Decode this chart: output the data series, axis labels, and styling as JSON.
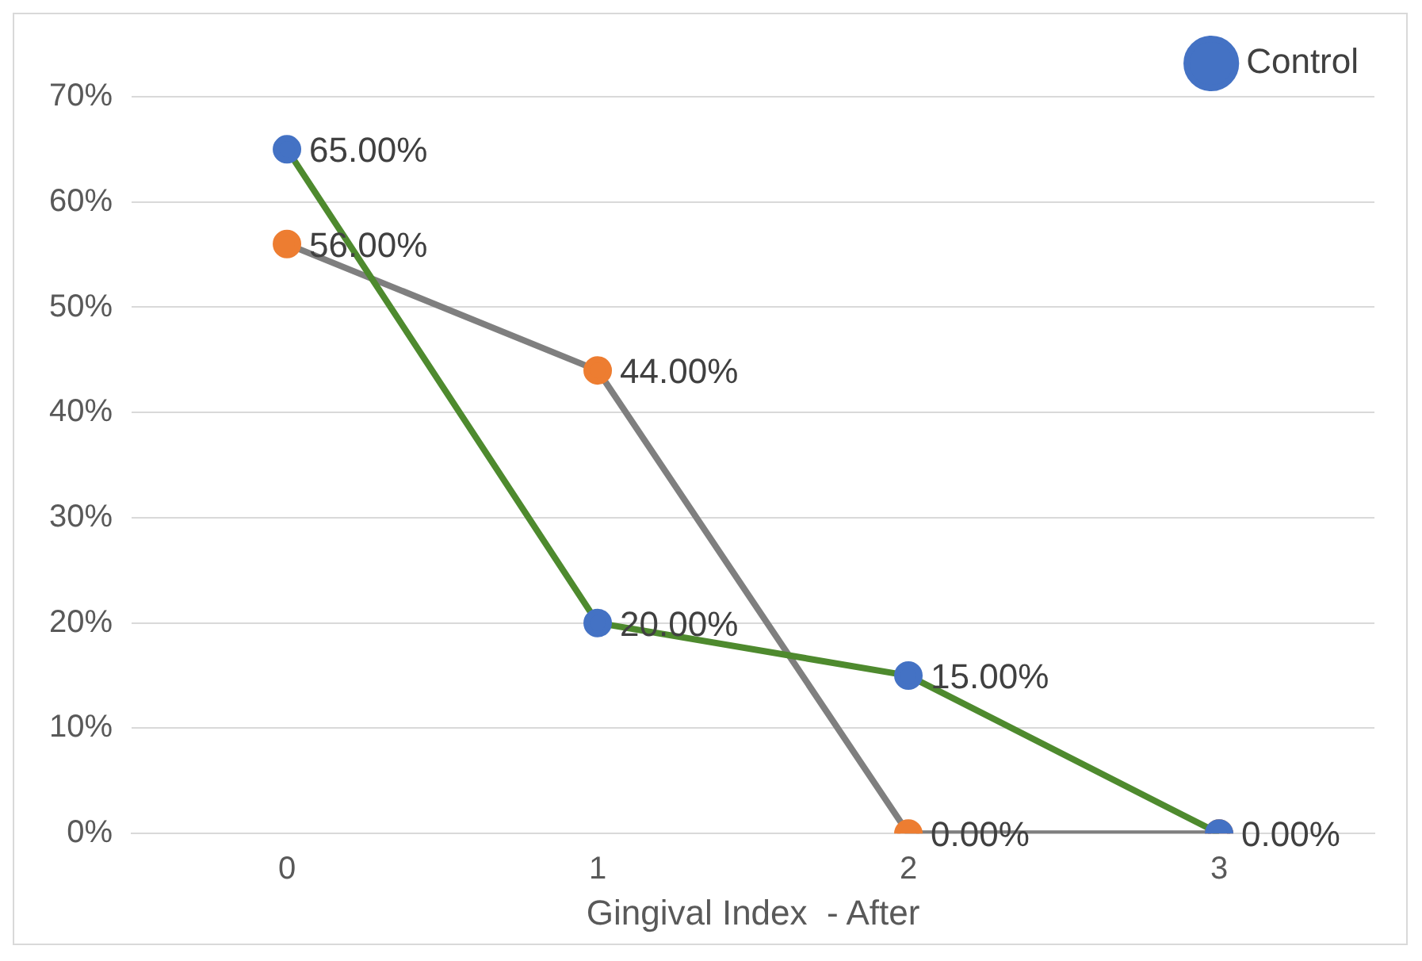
{
  "chart_data": {
    "type": "line",
    "xlabel": "Gingival Index  - After",
    "categories": [
      "0",
      "1",
      "2",
      "3"
    ],
    "series": [
      {
        "name": "Control",
        "color": "#4e8a2e",
        "colors": [
          "#4472c4",
          "#4472c4",
          "#4472c4",
          "#4472c4"
        ],
        "values": [
          65,
          20,
          15,
          0
        ],
        "value_labels": [
          "65.00%",
          "20.00%",
          "15.00%",
          null
        ]
      },
      {
        "color": "#7f7f7f",
        "colors": [
          "#ed7d31",
          "#ed7d31",
          "#ed7d31",
          "#ed7d31"
        ],
        "values": [
          56,
          44,
          0,
          0
        ],
        "value_labels": [
          "56.00%",
          "44.00%",
          "0.00%",
          "0.00%"
        ]
      }
    ],
    "ylim": [
      0,
      70
    ],
    "yticks": [
      {
        "value": 0,
        "label": "0%"
      },
      {
        "value": 10,
        "label": "10%"
      },
      {
        "value": 20,
        "label": "20%"
      },
      {
        "value": 30,
        "label": "30%"
      },
      {
        "value": 40,
        "label": "40%"
      },
      {
        "value": 50,
        "label": "50%"
      },
      {
        "value": 60,
        "label": "60%"
      },
      {
        "value": 70,
        "label": "70%"
      }
    ],
    "grid": "y",
    "legend": "top right",
    "marker": "circle",
    "line_style": "solid"
  }
}
